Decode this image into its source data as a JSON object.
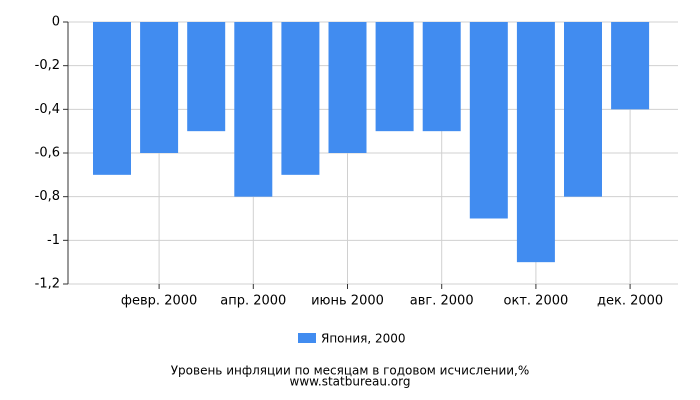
{
  "chart_data": {
    "type": "bar",
    "categories": [
      null,
      "февр. 2000",
      null,
      "апр. 2000",
      null,
      "июнь 2000",
      null,
      "авг. 2000",
      null,
      "окт. 2000",
      null,
      "дек. 2000"
    ],
    "series": [
      {
        "name": "Япония, 2000",
        "color": "#418cf0",
        "values": [
          -0.7,
          -0.6,
          -0.5,
          -0.8,
          -0.7,
          -0.6,
          -0.5,
          -0.5,
          -0.9,
          -1.1,
          -0.8,
          -0.4
        ]
      }
    ],
    "ylim": [
      -1.2,
      0
    ],
    "yticks": [
      0,
      {
        "value": -0.2,
        "label": "-0,2"
      },
      {
        "value": -0.4,
        "label": "-0,4"
      },
      {
        "value": -0.6,
        "label": "-0,6"
      },
      {
        "value": -0.8,
        "label": "-0,8"
      },
      -1,
      {
        "value": -1.2,
        "label": "-1,2"
      }
    ],
    "grid": true,
    "title": "Уровень инфляции по месяцам в годовом исчислении,%",
    "subtitle": "www.statbureau.org"
  }
}
